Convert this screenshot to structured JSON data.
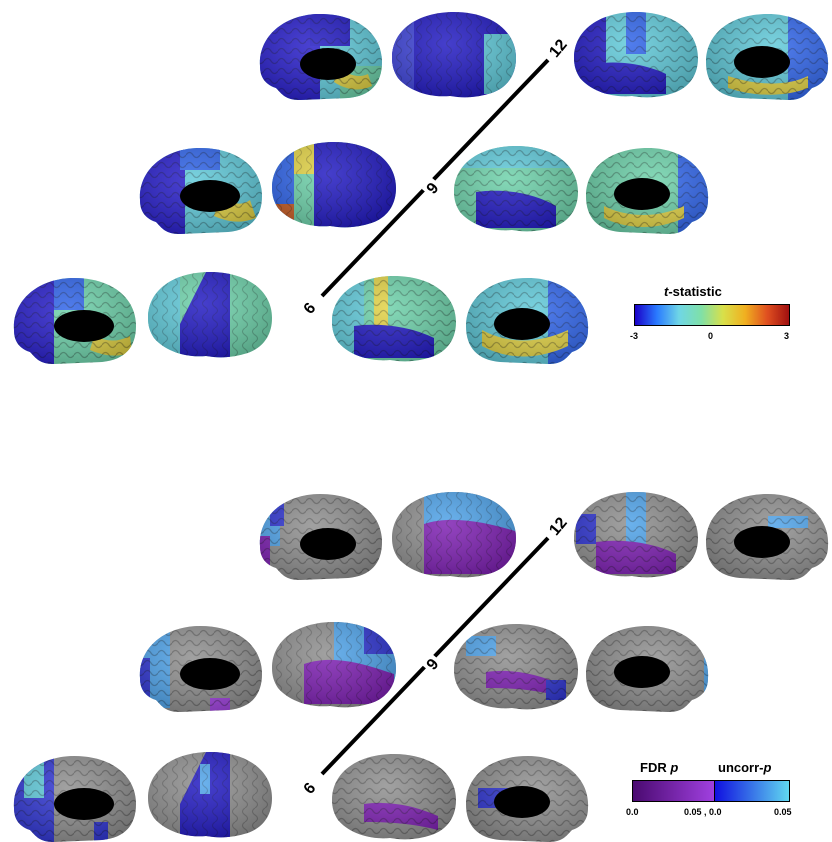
{
  "top_panel": {
    "axis_ticks": [
      "12",
      "9",
      "6"
    ],
    "legend": {
      "title_italic": "t",
      "title_rest": "-statistic",
      "ticks": [
        "-3",
        "0",
        "3"
      ],
      "colors": [
        "#1a00c8",
        "#2a7bff",
        "#6fd6e6",
        "#7fe0a8",
        "#d8e04a",
        "#f0b020",
        "#e05020",
        "#a01010"
      ]
    }
  },
  "bottom_panel": {
    "axis_ticks": [
      "12",
      "9",
      "6"
    ],
    "legend": {
      "fdr_label": "FDR ",
      "fdr_italic": "p",
      "uncorr_label": "uncorr-",
      "uncorr_italic": "p",
      "ticks": [
        "0.0",
        "0.05 , 0.0",
        "0.05"
      ],
      "fdr_colors": [
        "#4a0a70",
        "#a040e0"
      ],
      "uncorr_colors": [
        "#1010e0",
        "#60d8f0"
      ]
    }
  },
  "colors": {
    "cortex_gray": "#8c8c8c",
    "deep_blue": "#1c14c0",
    "cyan": "#5cc8d8",
    "aqua_green": "#6ad0a8",
    "yellow": "#e0d040",
    "purple": "#7a1ab0",
    "light_blue": "#4aa0e8"
  }
}
